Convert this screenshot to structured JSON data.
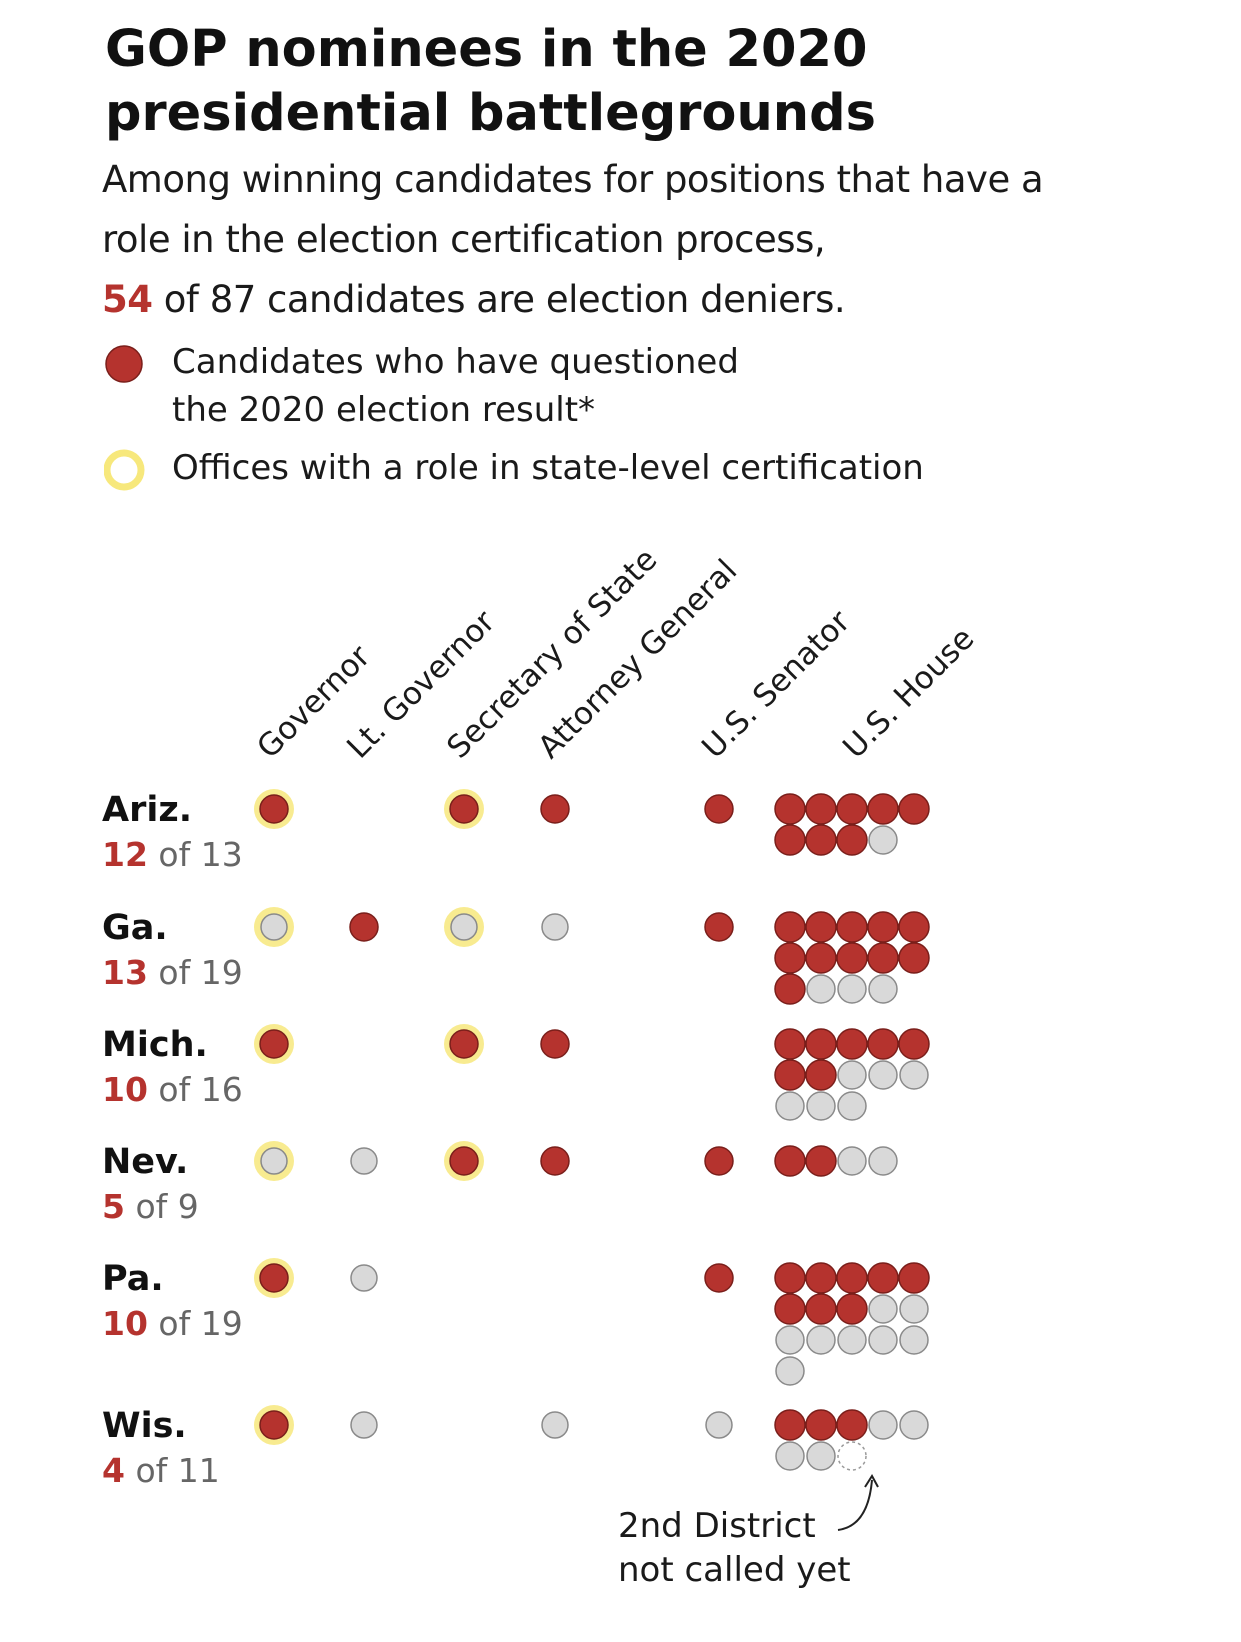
{
  "title": "GOP nominees in the 2020 presidential battlegrounds",
  "subtitle": {
    "lead": "Among winning candidates for positions that have a role in the election certification process,",
    "highlight": "54",
    "rest": "of 87 candidates are election deniers."
  },
  "legend": [
    {
      "key": "denier",
      "label": "Candidates who have questioned\nthe 2020 election result*",
      "icon": "red-dot"
    },
    {
      "key": "certifier",
      "label": "Offices with a role in state-level certification",
      "icon": "yellow-ring"
    }
  ],
  "colors": {
    "denier": "#b5332e",
    "other": "#d9d9d9",
    "certifier_ring": "#f7e87c",
    "pending_outline": "#999999",
    "highlight_text": "#b5332e"
  },
  "chart_data": {
    "type": "dot-matrix",
    "columns": [
      "Governor",
      "Lt. Governor",
      "Secretary of State",
      "Attorney General",
      "U.S. Senator",
      "U.S. House"
    ],
    "states": [
      {
        "name": "Ariz.",
        "deniers": 12,
        "of_text": "of 13",
        "total": 13,
        "offices": {
          "Governor": {
            "status": "denier",
            "certifies": true
          },
          "Secretary of State": {
            "status": "denier",
            "certifies": true
          },
          "Attorney General": {
            "status": "denier",
            "certifies": false
          },
          "U.S. Senator": {
            "status": "denier",
            "certifies": false
          }
        },
        "house": [
          "denier",
          "denier",
          "denier",
          "denier",
          "denier",
          "denier",
          "denier",
          "denier",
          "other"
        ]
      },
      {
        "name": "Ga.",
        "deniers": 13,
        "of_text": "of 19",
        "total": 19,
        "offices": {
          "Governor": {
            "status": "other",
            "certifies": true
          },
          "Lt. Governor": {
            "status": "denier",
            "certifies": false
          },
          "Secretary of State": {
            "status": "other",
            "certifies": true
          },
          "Attorney General": {
            "status": "other",
            "certifies": false
          },
          "U.S. Senator": {
            "status": "denier",
            "certifies": false
          }
        },
        "house": [
          "denier",
          "denier",
          "denier",
          "denier",
          "denier",
          "denier",
          "denier",
          "denier",
          "denier",
          "denier",
          "denier",
          "other",
          "other",
          "other"
        ]
      },
      {
        "name": "Mich.",
        "deniers": 10,
        "of_text": "of 16",
        "total": 16,
        "offices": {
          "Governor": {
            "status": "denier",
            "certifies": true
          },
          "Secretary of State": {
            "status": "denier",
            "certifies": true
          },
          "Attorney General": {
            "status": "denier",
            "certifies": false
          }
        },
        "house": [
          "denier",
          "denier",
          "denier",
          "denier",
          "denier",
          "denier",
          "denier",
          "other",
          "other",
          "other",
          "other",
          "other",
          "other"
        ]
      },
      {
        "name": "Nev.",
        "deniers": 5,
        "of_text": "of 9",
        "total": 9,
        "offices": {
          "Governor": {
            "status": "other",
            "certifies": true
          },
          "Lt. Governor": {
            "status": "other",
            "certifies": false
          },
          "Secretary of State": {
            "status": "denier",
            "certifies": true
          },
          "Attorney General": {
            "status": "denier",
            "certifies": false
          },
          "U.S. Senator": {
            "status": "denier",
            "certifies": false
          }
        },
        "house": [
          "denier",
          "denier",
          "other",
          "other"
        ]
      },
      {
        "name": "Pa.",
        "deniers": 10,
        "of_text": "of 19",
        "total": 19,
        "offices": {
          "Governor": {
            "status": "denier",
            "certifies": true
          },
          "Lt. Governor": {
            "status": "other",
            "certifies": false
          },
          "U.S. Senator": {
            "status": "denier",
            "certifies": false
          }
        },
        "house": [
          "denier",
          "denier",
          "denier",
          "denier",
          "denier",
          "denier",
          "denier",
          "denier",
          "other",
          "other",
          "other",
          "other",
          "other",
          "other",
          "other",
          "other"
        ]
      },
      {
        "name": "Wis.",
        "deniers": 4,
        "of_text": "of 11",
        "total": 11,
        "offices": {
          "Governor": {
            "status": "denier",
            "certifies": true
          },
          "Lt. Governor": {
            "status": "other",
            "certifies": false
          },
          "Attorney General": {
            "status": "other",
            "certifies": false
          },
          "U.S. Senator": {
            "status": "other",
            "certifies": false
          }
        },
        "house": [
          "denier",
          "denier",
          "denier",
          "other",
          "other",
          "other",
          "other",
          "pending"
        ]
      }
    ],
    "annotation": {
      "text": "2nd District\nnot called yet",
      "state": "Wis.",
      "house_index": 7
    }
  }
}
